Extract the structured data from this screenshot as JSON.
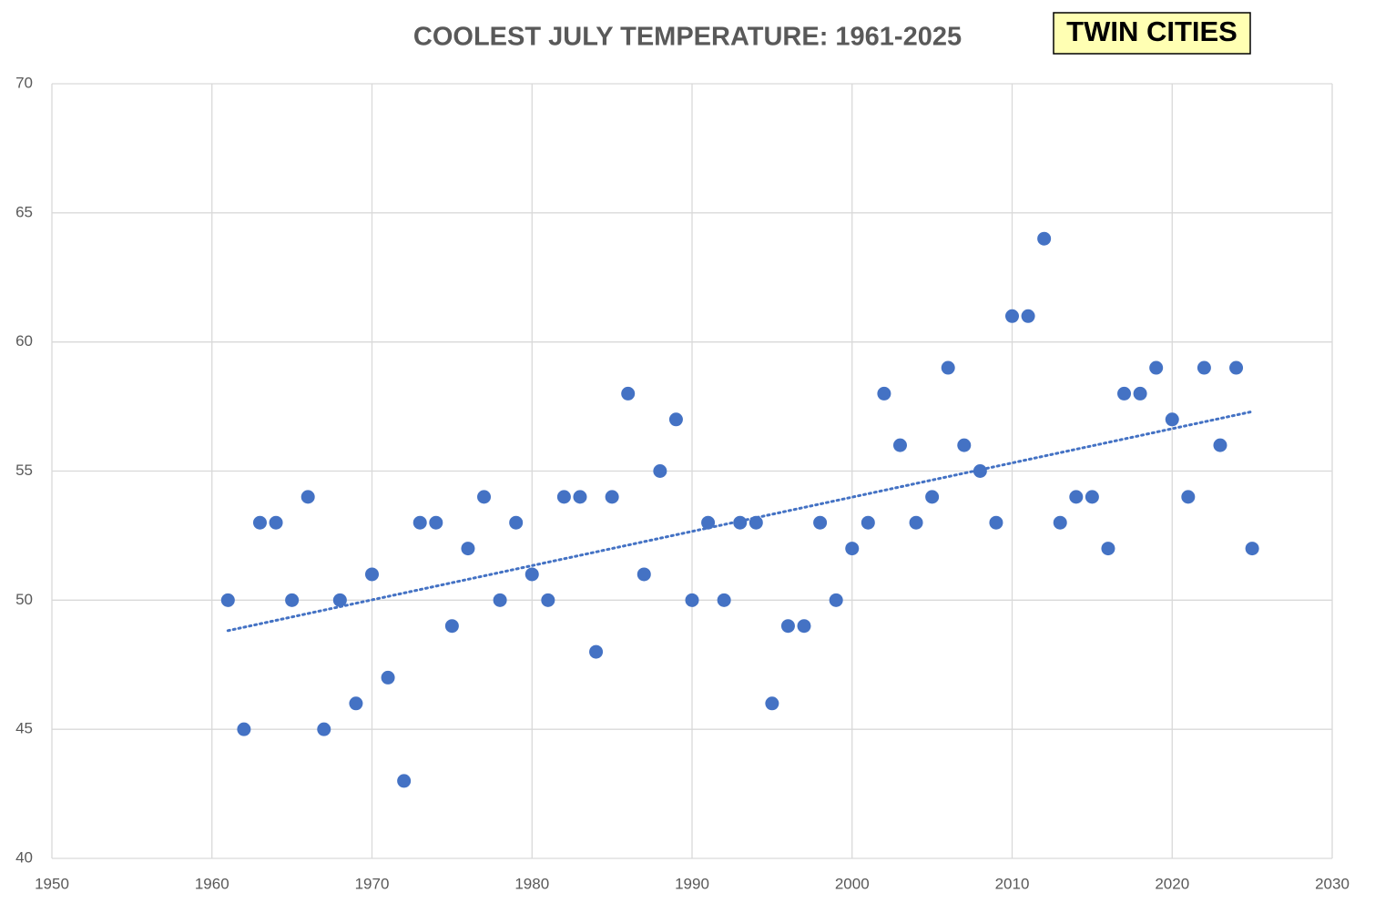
{
  "chart_data": {
    "type": "scatter",
    "title": "COOLEST JULY TEMPERATURE: 1961-2025",
    "annotation": "TWIN CITIES",
    "x": [
      1961,
      1962,
      1963,
      1964,
      1965,
      1966,
      1967,
      1968,
      1969,
      1970,
      1971,
      1972,
      1973,
      1974,
      1975,
      1976,
      1977,
      1978,
      1979,
      1980,
      1981,
      1982,
      1983,
      1984,
      1985,
      1986,
      1987,
      1988,
      1989,
      1990,
      1991,
      1992,
      1993,
      1994,
      1995,
      1996,
      1997,
      1998,
      1999,
      2000,
      2001,
      2002,
      2003,
      2004,
      2005,
      2006,
      2007,
      2008,
      2009,
      2010,
      2011,
      2012,
      2013,
      2014,
      2015,
      2016,
      2017,
      2018,
      2019,
      2020,
      2021,
      2022,
      2023,
      2024,
      2025
    ],
    "values": [
      50,
      45,
      53,
      53,
      50,
      54,
      45,
      50,
      46,
      51,
      47,
      43,
      53,
      53,
      49,
      52,
      54,
      50,
      53,
      51,
      50,
      54,
      54,
      48,
      54,
      58,
      51,
      55,
      57,
      50,
      53,
      50,
      53,
      53,
      46,
      49,
      49,
      53,
      50,
      52,
      53,
      58,
      56,
      53,
      54,
      59,
      56,
      55,
      53,
      61,
      61,
      64,
      53,
      54,
      54,
      52,
      58,
      58,
      59,
      57,
      54,
      59,
      56,
      59,
      52
    ],
    "color": "#4472c4",
    "trendline": true,
    "xlim": [
      1950,
      2030
    ],
    "xticks": [
      1950,
      1960,
      1970,
      1980,
      1990,
      2000,
      2010,
      2020,
      2030
    ],
    "ylim": [
      40,
      70
    ],
    "yticks": [
      40,
      45,
      50,
      55,
      60,
      65,
      70
    ],
    "grid": true
  }
}
